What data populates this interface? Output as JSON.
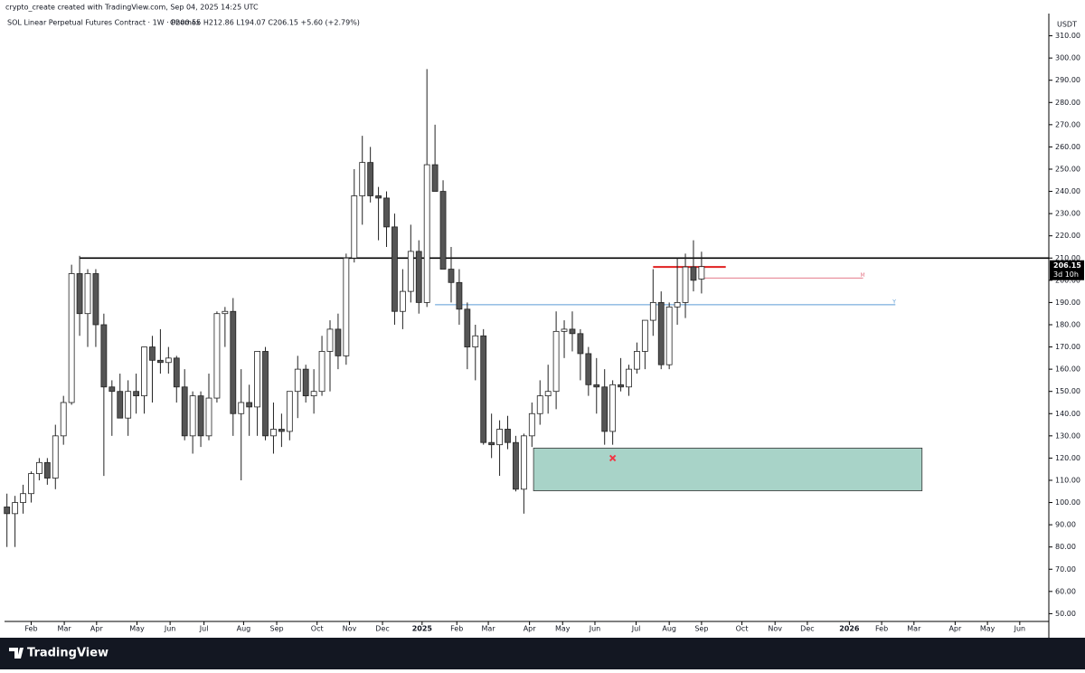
{
  "header": "crypto_create created with TradingView.com, Sep 04, 2025 14:25 UTC",
  "footer": {
    "brand": "TradingView"
  },
  "chart_data": {
    "type": "candlestick",
    "title": "SOL Linear Perpetual Futures Contract · 1W · Phemex",
    "legend_values": "O200.55 H212.86 L194.07 C206.15 +5.60 (+2.79%)",
    "y_unit": "USDT",
    "price_label": "206.15",
    "countdown": "3d 10h",
    "up_color": "#ffffff",
    "down_color": "#555555",
    "wick_color": "#222222",
    "ohlc": [
      [
        98,
        104,
        80,
        95
      ],
      [
        95,
        103,
        80,
        100
      ],
      [
        100,
        108,
        95,
        104
      ],
      [
        104,
        114,
        100,
        113
      ],
      [
        113,
        120,
        110,
        118
      ],
      [
        118,
        120,
        108,
        111
      ],
      [
        111,
        135,
        106,
        130
      ],
      [
        130,
        148,
        126,
        145
      ],
      [
        145,
        207,
        144,
        203
      ],
      [
        203,
        211,
        175,
        185
      ],
      [
        185,
        205,
        170,
        203
      ],
      [
        203,
        205,
        170,
        180
      ],
      [
        180,
        185,
        112,
        152
      ],
      [
        152,
        155,
        130,
        150
      ],
      [
        150,
        158,
        138,
        138
      ],
      [
        138,
        155,
        130,
        150
      ],
      [
        150,
        158,
        140,
        148
      ],
      [
        148,
        170,
        140,
        170
      ],
      [
        170,
        175,
        145,
        164
      ],
      [
        164,
        178,
        158,
        163
      ],
      [
        163,
        170,
        158,
        165
      ],
      [
        165,
        166,
        145,
        152
      ],
      [
        152,
        160,
        128,
        130
      ],
      [
        130,
        150,
        122,
        148
      ],
      [
        148,
        150,
        125,
        130
      ],
      [
        130,
        158,
        128,
        147
      ],
      [
        147,
        186,
        145,
        185
      ],
      [
        185,
        188,
        170,
        186
      ],
      [
        186,
        192,
        130,
        140
      ],
      [
        140,
        160,
        110,
        145
      ],
      [
        145,
        153,
        130,
        143
      ],
      [
        143,
        168,
        130,
        168
      ],
      [
        168,
        170,
        128,
        130
      ],
      [
        130,
        145,
        122,
        133
      ],
      [
        133,
        140,
        125,
        132
      ],
      [
        132,
        150,
        128,
        150
      ],
      [
        150,
        166,
        138,
        160
      ],
      [
        160,
        162,
        145,
        148
      ],
      [
        148,
        160,
        140,
        150
      ],
      [
        150,
        175,
        148,
        168
      ],
      [
        168,
        182,
        150,
        178
      ],
      [
        178,
        185,
        160,
        166
      ],
      [
        166,
        212,
        162,
        210
      ],
      [
        210,
        250,
        208,
        238
      ],
      [
        238,
        265,
        225,
        253
      ],
      [
        253,
        260,
        235,
        238
      ],
      [
        238,
        242,
        218,
        237
      ],
      [
        237,
        240,
        215,
        224
      ],
      [
        224,
        230,
        180,
        186
      ],
      [
        186,
        205,
        178,
        195
      ],
      [
        195,
        225,
        190,
        213
      ],
      [
        213,
        218,
        185,
        190
      ],
      [
        190,
        295,
        188,
        252
      ],
      [
        252,
        270,
        240,
        240
      ],
      [
        240,
        245,
        205,
        205
      ],
      [
        205,
        215,
        190,
        199
      ],
      [
        199,
        205,
        180,
        187
      ],
      [
        187,
        190,
        160,
        170
      ],
      [
        170,
        180,
        155,
        175
      ],
      [
        175,
        178,
        126,
        127
      ],
      [
        127,
        140,
        120,
        126
      ],
      [
        126,
        137,
        112,
        133
      ],
      [
        133,
        139,
        124,
        127
      ],
      [
        127,
        130,
        105,
        106
      ],
      [
        106,
        131,
        95,
        130
      ],
      [
        130,
        145,
        125,
        140
      ],
      [
        140,
        155,
        135,
        148
      ],
      [
        148,
        162,
        140,
        150
      ],
      [
        150,
        186,
        142,
        177
      ],
      [
        177,
        182,
        165,
        178
      ],
      [
        178,
        186,
        168,
        176
      ],
      [
        176,
        178,
        155,
        167
      ],
      [
        167,
        170,
        148,
        153
      ],
      [
        153,
        165,
        140,
        152
      ],
      [
        152,
        160,
        126,
        132
      ],
      [
        132,
        155,
        126,
        153
      ],
      [
        153,
        165,
        150,
        152
      ],
      [
        152,
        162,
        148,
        160
      ],
      [
        160,
        172,
        158,
        168
      ],
      [
        168,
        182,
        160,
        182
      ],
      [
        182,
        205,
        175,
        190
      ],
      [
        190,
        195,
        160,
        162
      ],
      [
        162,
        190,
        160,
        188
      ],
      [
        188,
        210,
        180,
        190
      ],
      [
        190,
        212,
        183,
        206
      ],
      [
        206,
        218,
        195,
        200
      ],
      [
        200.55,
        212.86,
        194.07,
        206.15
      ]
    ],
    "xlim": [
      -0.3,
      129
    ],
    "xticks": [
      {
        "value": 3.0,
        "label": "Feb"
      },
      {
        "value": 7.1,
        "label": "Mar"
      },
      {
        "value": 11.1,
        "label": "Apr"
      },
      {
        "value": 16.1,
        "label": "May"
      },
      {
        "value": 20.2,
        "label": "Jun"
      },
      {
        "value": 24.4,
        "label": "Jul"
      },
      {
        "value": 29.3,
        "label": "Aug"
      },
      {
        "value": 33.4,
        "label": "Sep"
      },
      {
        "value": 38.4,
        "label": "Oct"
      },
      {
        "value": 42.4,
        "label": "Nov"
      },
      {
        "value": 46.5,
        "label": "Dec"
      },
      {
        "value": 51.4,
        "label": "2025"
      },
      {
        "value": 55.7,
        "label": "Feb"
      },
      {
        "value": 59.6,
        "label": "Mar"
      },
      {
        "value": 64.7,
        "label": "Apr"
      },
      {
        "value": 68.8,
        "label": "May"
      },
      {
        "value": 72.8,
        "label": "Jun"
      },
      {
        "value": 77.9,
        "label": "Jul"
      },
      {
        "value": 82.0,
        "label": "Aug"
      },
      {
        "value": 86.0,
        "label": "Sep"
      },
      {
        "value": 91.0,
        "label": "Oct"
      },
      {
        "value": 95.1,
        "label": "Nov"
      },
      {
        "value": 99.1,
        "label": "Dec"
      },
      {
        "value": 104.3,
        "label": "2026"
      },
      {
        "value": 108.3,
        "label": "Feb"
      },
      {
        "value": 112.3,
        "label": "Mar"
      },
      {
        "value": 117.4,
        "label": "Apr"
      },
      {
        "value": 121.4,
        "label": "May"
      },
      {
        "value": 125.4,
        "label": "Jun"
      }
    ],
    "ylim": [
      46.5,
      320
    ],
    "yticks": [
      {
        "value": 50,
        "label": "50.00"
      },
      {
        "value": 60,
        "label": "60.00"
      },
      {
        "value": 70,
        "label": "70.00"
      },
      {
        "value": 80,
        "label": "80.00"
      },
      {
        "value": 90,
        "label": "90.00"
      },
      {
        "value": 100,
        "label": "100.00"
      },
      {
        "value": 110,
        "label": "110.00"
      },
      {
        "value": 120,
        "label": "120.00"
      },
      {
        "value": 130,
        "label": "130.00"
      },
      {
        "value": 140,
        "label": "140.00"
      },
      {
        "value": 150,
        "label": "150.00"
      },
      {
        "value": 160,
        "label": "160.00"
      },
      {
        "value": 170,
        "label": "170.00"
      },
      {
        "value": 180,
        "label": "180.00"
      },
      {
        "value": 190,
        "label": "190.00"
      },
      {
        "value": 200,
        "label": "200.00"
      },
      {
        "value": 210,
        "label": "210.00"
      },
      {
        "value": 220,
        "label": "220.00"
      },
      {
        "value": 230,
        "label": "230.00"
      },
      {
        "value": 240,
        "label": "240.00"
      },
      {
        "value": 250,
        "label": "250.00"
      },
      {
        "value": 260,
        "label": "260.00"
      },
      {
        "value": 270,
        "label": "270.00"
      },
      {
        "value": 280,
        "label": "280.00"
      },
      {
        "value": 290,
        "label": "290.00"
      },
      {
        "value": 300,
        "label": "300.00"
      },
      {
        "value": 310,
        "label": "310.00"
      }
    ],
    "levels": [
      {
        "value": 210,
        "color": "#000000",
        "x": [
          9,
          129
        ]
      },
      {
        "value": 189,
        "color": "#5b9bd5",
        "x": [
          53,
          110
        ],
        "label": "Y"
      },
      {
        "value": 201,
        "color": "#e57b8c",
        "x": [
          86,
          106
        ],
        "label": "M"
      },
      {
        "value": 206,
        "color": "#e02020",
        "x": [
          80,
          89
        ]
      }
    ],
    "zone": {
      "low": 105.3,
      "high": 124.5,
      "x": [
        65.2,
        113.3
      ],
      "color": "#a8d3c8"
    },
    "marker": {
      "x": 75,
      "value": 120,
      "color": "#f23645"
    }
  }
}
